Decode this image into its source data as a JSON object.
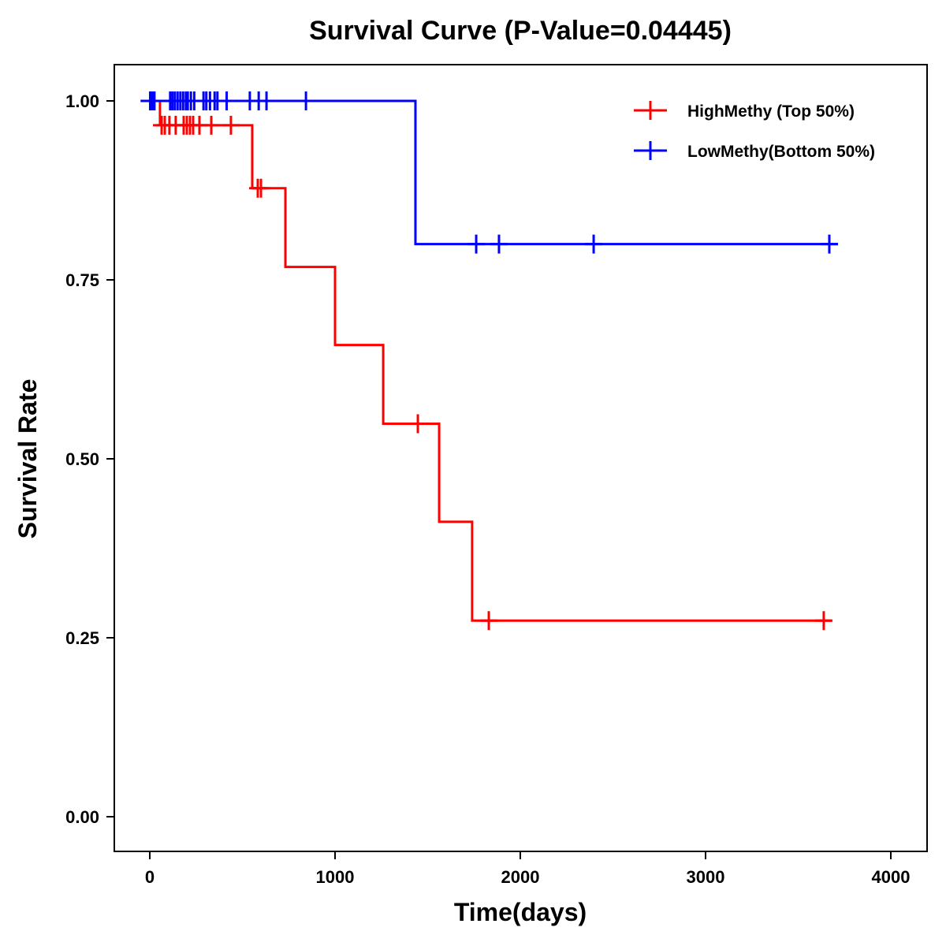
{
  "chart_data": {
    "type": "line",
    "subtype": "kaplan-meier step",
    "title": "Survival Curve (P-Value=0.04445)",
    "xlabel": "Time(days)",
    "ylabel": "Survival Rate",
    "xlim": [
      -200,
      4200
    ],
    "ylim": [
      -0.05,
      1.05
    ],
    "xticks": [
      0,
      1000,
      2000,
      3000,
      4000
    ],
    "xtick_labels": [
      "0",
      "1000",
      "2000",
      "3000",
      "4000"
    ],
    "yticks": [
      0,
      0.25,
      0.5,
      0.75,
      1.0
    ],
    "ytick_labels": [
      "0.00",
      "0.25",
      "0.50",
      "0.75",
      "1.00"
    ],
    "grid": false,
    "legend_position": "top-right",
    "series": [
      {
        "name": "HighMethy (Top 50%)",
        "color": "#ff0000",
        "steps": [
          [
            0,
            1.0
          ],
          [
            55,
            0.966
          ],
          [
            553,
            0.878
          ],
          [
            732,
            0.768
          ],
          [
            1000,
            0.659
          ],
          [
            1260,
            0.549
          ],
          [
            1562,
            0.412
          ],
          [
            1740,
            0.274
          ]
        ],
        "end": 3680,
        "censored": [
          [
            64,
            0.966
          ],
          [
            81,
            0.966
          ],
          [
            106,
            0.966
          ],
          [
            140,
            0.966
          ],
          [
            183,
            0.966
          ],
          [
            200,
            0.966
          ],
          [
            217,
            0.966
          ],
          [
            234,
            0.966
          ],
          [
            268,
            0.966
          ],
          [
            332,
            0.966
          ],
          [
            438,
            0.966
          ],
          [
            583,
            0.878
          ],
          [
            600,
            0.878
          ],
          [
            1447,
            0.549
          ],
          [
            1830,
            0.274
          ],
          [
            3638,
            0.274
          ]
        ]
      },
      {
        "name": "LowMethy(Bottom 50%)",
        "color": "#0000ff",
        "steps": [
          [
            -50,
            1.0
          ],
          [
            1434,
            0.8
          ]
        ],
        "end": 3715,
        "censored": [
          [
            2,
            1
          ],
          [
            8,
            1
          ],
          [
            14,
            1
          ],
          [
            25,
            1
          ],
          [
            110,
            1
          ],
          [
            122,
            1
          ],
          [
            135,
            1
          ],
          [
            150,
            1
          ],
          [
            165,
            1
          ],
          [
            180,
            1
          ],
          [
            195,
            1
          ],
          [
            205,
            1
          ],
          [
            222,
            1
          ],
          [
            240,
            1
          ],
          [
            290,
            1
          ],
          [
            305,
            1
          ],
          [
            325,
            1
          ],
          [
            350,
            1
          ],
          [
            365,
            1
          ],
          [
            415,
            1
          ],
          [
            540,
            1
          ],
          [
            588,
            1
          ],
          [
            630,
            1
          ],
          [
            843,
            1
          ],
          [
            1762,
            0.8
          ],
          [
            1885,
            0.8
          ],
          [
            2396,
            0.8
          ],
          [
            3668,
            0.8
          ]
        ]
      }
    ]
  }
}
